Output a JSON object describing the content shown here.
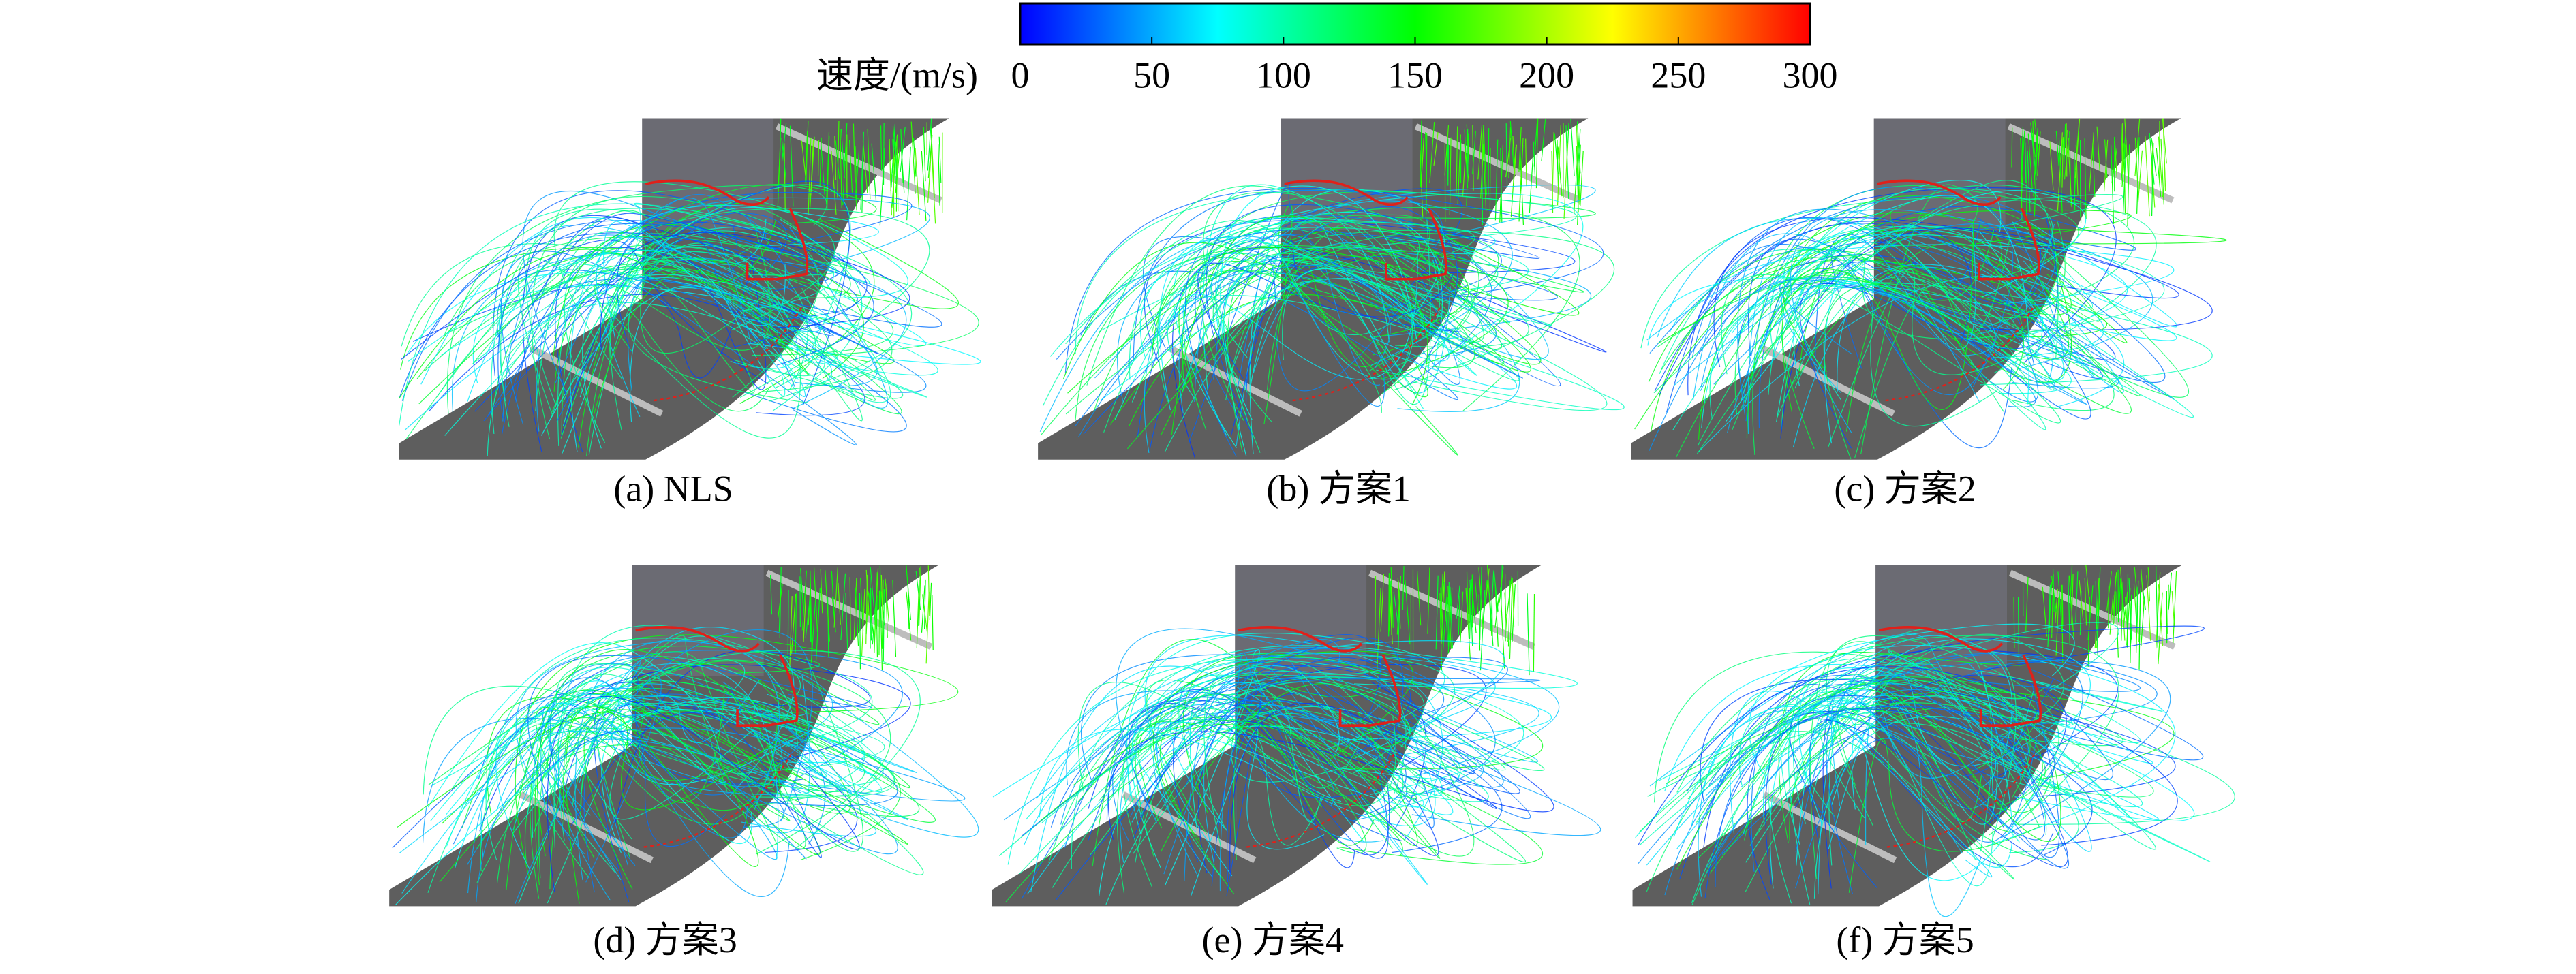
{
  "colorbar": {
    "label": "速度/(m/s)",
    "lim": [
      0,
      300
    ],
    "ticks": [
      0,
      50,
      100,
      150,
      200,
      250,
      300
    ],
    "colors": [
      "#0000ff",
      "#00ffff",
      "#00ff00",
      "#ffff00",
      "#ff0000"
    ]
  },
  "panels": [
    {
      "caption": "(a) NLS"
    },
    {
      "caption": "(b) 方案1"
    },
    {
      "caption": "(c) 方案2"
    },
    {
      "caption": "(d) 方案3"
    },
    {
      "caption": "(e) 方案4"
    },
    {
      "caption": "(f) 方案5"
    }
  ]
}
